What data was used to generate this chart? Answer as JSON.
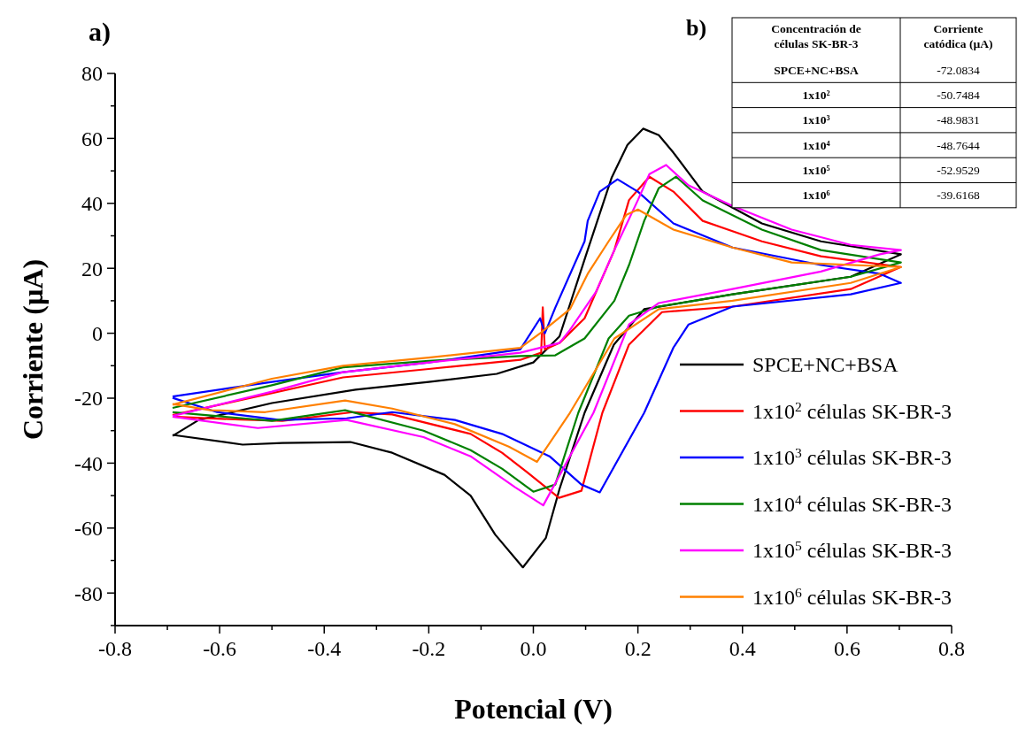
{
  "chart_data": [
    {
      "type": "line",
      "title": "a)",
      "xlabel": "Potencial (V)",
      "ylabel": "Corriente (µA)",
      "xlim": [
        -0.8,
        0.8
      ],
      "ylim": [
        -90,
        80
      ],
      "xticks": [
        -0.8,
        {
          "value": -0.7,
          "label": null
        },
        -0.6,
        {
          "value": -0.5,
          "label": null
        },
        -0.4,
        {
          "value": -0.3,
          "label": null
        },
        -0.2,
        {
          "value": -0.1,
          "label": null
        },
        {
          "value": 0,
          "label": "0.0"
        },
        {
          "value": 0.1,
          "label": null
        },
        0.2,
        {
          "value": 0.3,
          "label": null
        },
        0.4,
        {
          "value": 0.5,
          "label": null
        },
        0.6,
        {
          "value": 0.7,
          "label": null
        },
        0.8
      ],
      "yticks": [
        {
          "value": -90,
          "label": null
        },
        -80,
        {
          "value": -70,
          "label": null
        },
        -60,
        {
          "value": -50,
          "label": null
        },
        -40,
        {
          "value": -30,
          "label": null
        },
        -20,
        {
          "value": -10,
          "label": null
        },
        0,
        {
          "value": 10,
          "label": null
        },
        20,
        {
          "value": 30,
          "label": null
        },
        40,
        {
          "value": 50,
          "label": null
        },
        60,
        {
          "value": 70,
          "label": null
        },
        80
      ],
      "legend": "bottom right",
      "grid": false,
      "marker": "none",
      "line_style": "solid",
      "series": [
        {
          "name": "SPCE+NC+BSA",
          "color": "#000000",
          "x": [
            -0.69,
            -0.64,
            -0.5,
            -0.34,
            -0.2,
            -0.07,
            0,
            0.05,
            0.1,
            0.15,
            0.18,
            0.21,
            0.24,
            0.268,
            0.324,
            0.437,
            0.55,
            0.703,
            0.607,
            0.381,
            0.212,
            0.154,
            0.098,
            0.05,
            0.024,
            -0.02,
            -0.073,
            -0.12,
            -0.17,
            -0.27,
            -0.35,
            -0.48,
            -0.556,
            -0.69
          ],
          "values": [
            -31.6,
            -26.7,
            -21.5,
            -17.4,
            -15,
            -12.5,
            -9,
            -1,
            23.7,
            48,
            58,
            63,
            61,
            55.6,
            43.6,
            33.8,
            28.3,
            24.3,
            17.4,
            12,
            7.4,
            -3.5,
            -24.5,
            -48,
            -63,
            -72.1,
            -62,
            -50,
            -43.6,
            -36.8,
            -33.5,
            -33.8,
            -34.3,
            -31.3
          ]
        },
        {
          "name": "1x10$^{2}$ células SK-BR-3",
          "color": "#ff0000",
          "x": [
            -0.69,
            -0.6,
            -0.364,
            -0.2,
            -0.025,
            0.015,
            0.018,
            0.022,
            0.05,
            0.098,
            0.155,
            0.183,
            0.222,
            0.268,
            0.324,
            0.437,
            0.55,
            0.703,
            0.607,
            0.381,
            0.246,
            0.183,
            0.132,
            0.092,
            0.049,
            -0.012,
            -0.06,
            -0.12,
            -0.27,
            -0.345,
            -0.48,
            -0.56,
            -0.69
          ],
          "values": [
            -25.2,
            -22,
            -13.6,
            -11,
            -8.2,
            -6,
            8,
            -5,
            -3,
            4.6,
            25.6,
            41,
            48.2,
            43.6,
            34.6,
            28.3,
            23.7,
            20.4,
            13.6,
            8.2,
            6.5,
            -3.5,
            -24.5,
            -48.5,
            -50.7,
            -42.8,
            -36.8,
            -31,
            -25,
            -24.3,
            -27,
            -26.6,
            -25.7
          ]
        },
        {
          "name": "1x10$^{3}$ células SK-BR-3",
          "color": "#0000ff",
          "x": [
            -0.69,
            -0.5,
            -0.364,
            -0.2,
            -0.025,
            0.013,
            0.022,
            0.042,
            0.098,
            0.104,
            0.127,
            0.161,
            0.2,
            0.268,
            0.381,
            0.55,
            0.663,
            0.703,
            0.607,
            0.381,
            0.297,
            0.268,
            0.212,
            0.127,
            0.092,
            0.031,
            -0.06,
            -0.15,
            -0.27,
            -0.357,
            -0.485,
            -0.605,
            -0.69
          ],
          "values": [
            -19.5,
            -15,
            -12,
            -9,
            -5,
            4.6,
            0,
            7.9,
            28.3,
            34.6,
            43.6,
            47.4,
            43.6,
            33.8,
            26.4,
            21,
            18.3,
            15.5,
            12,
            8.2,
            2.7,
            -4.4,
            -24.5,
            -49.0,
            -46.6,
            -37.9,
            -31,
            -26.7,
            -24.3,
            -26.2,
            -26.7,
            -24.3,
            -19.9
          ]
        },
        {
          "name": "1x10$^{4}$ células SK-BR-3",
          "color": "#008000",
          "x": [
            -0.69,
            -0.5,
            -0.364,
            -0.2,
            -0.025,
            0.042,
            0.098,
            0.155,
            0.183,
            0.212,
            0.24,
            0.273,
            0.324,
            0.437,
            0.55,
            0.703,
            0.607,
            0.381,
            0.24,
            0.183,
            0.144,
            0.086,
            0.042,
            0,
            -0.06,
            -0.12,
            -0.21,
            -0.36,
            -0.5,
            -0.69
          ],
          "values": [
            -23,
            -16,
            -10.5,
            -8.5,
            -7,
            -6.8,
            -1.6,
            10,
            21,
            34.6,
            44.7,
            48.2,
            40.9,
            31.9,
            25.6,
            21.8,
            17.4,
            12,
            8.2,
            5.4,
            -1.6,
            -24.5,
            -46.6,
            -48.8,
            -41.7,
            -36,
            -30,
            -23.7,
            -27,
            -24.3
          ]
        },
        {
          "name": "1x10$^{5}$ células SK-BR-3",
          "color": "#ff00ff",
          "x": [
            -0.69,
            -0.5,
            -0.364,
            -0.2,
            -0.025,
            0.05,
            0.07,
            0.12,
            0.155,
            0.2,
            0.222,
            0.254,
            0.297,
            0.381,
            0.494,
            0.607,
            0.703,
            0.663,
            0.55,
            0.381,
            0.24,
            0.183,
            0.115,
            0.019,
            -0.035,
            -0.12,
            -0.21,
            -0.357,
            -0.527,
            -0.69
          ],
          "values": [
            -25.5,
            -18,
            -12,
            -9,
            -6,
            -3,
            1,
            12.8,
            25.6,
            41,
            49,
            51.8,
            45.5,
            39.2,
            31.9,
            27.2,
            25.6,
            24.3,
            19,
            13.6,
            9.3,
            2.7,
            -24.5,
            -53.0,
            -47.4,
            -37.9,
            -32,
            -26.7,
            -29.2,
            -25.7
          ]
        },
        {
          "name": "1x10$^{6}$ células SK-BR-3",
          "color": "#ff8000",
          "x": [
            -0.69,
            -0.5,
            -0.364,
            -0.2,
            -0.025,
            0.013,
            0.07,
            0.104,
            0.144,
            0.178,
            0.2,
            0.268,
            0.381,
            0.494,
            0.703,
            0.607,
            0.381,
            0.24,
            0.155,
            0.07,
            0.007,
            -0.047,
            -0.15,
            -0.27,
            -0.36,
            -0.513,
            -0.617,
            -0.69
          ],
          "values": [
            -22,
            -14,
            -10,
            -7.5,
            -4.5,
            0,
            7.4,
            18.3,
            28.3,
            36.5,
            38.1,
            31.9,
            26.4,
            21.8,
            20.4,
            15.5,
            10,
            7.4,
            -1.6,
            -24.5,
            -39.6,
            -34.9,
            -28,
            -23.2,
            -20.7,
            -24.3,
            -23.7,
            -21.8
          ]
        }
      ]
    },
    {
      "type": "other",
      "title": "b)",
      "annotations": [
        "Concentración de células SK-BR-3",
        "Corriente catódica (µA)"
      ],
      "categories": [
        "SPCE+NC+BSA",
        "1x10²",
        "1x10³",
        "1x10⁴",
        "1x10⁵",
        "1x10⁶"
      ],
      "values": [
        -72.0834,
        -50.7484,
        -48.9831,
        -48.7644,
        -52.9529,
        -39.6168
      ],
      "data_labels": true
    }
  ]
}
